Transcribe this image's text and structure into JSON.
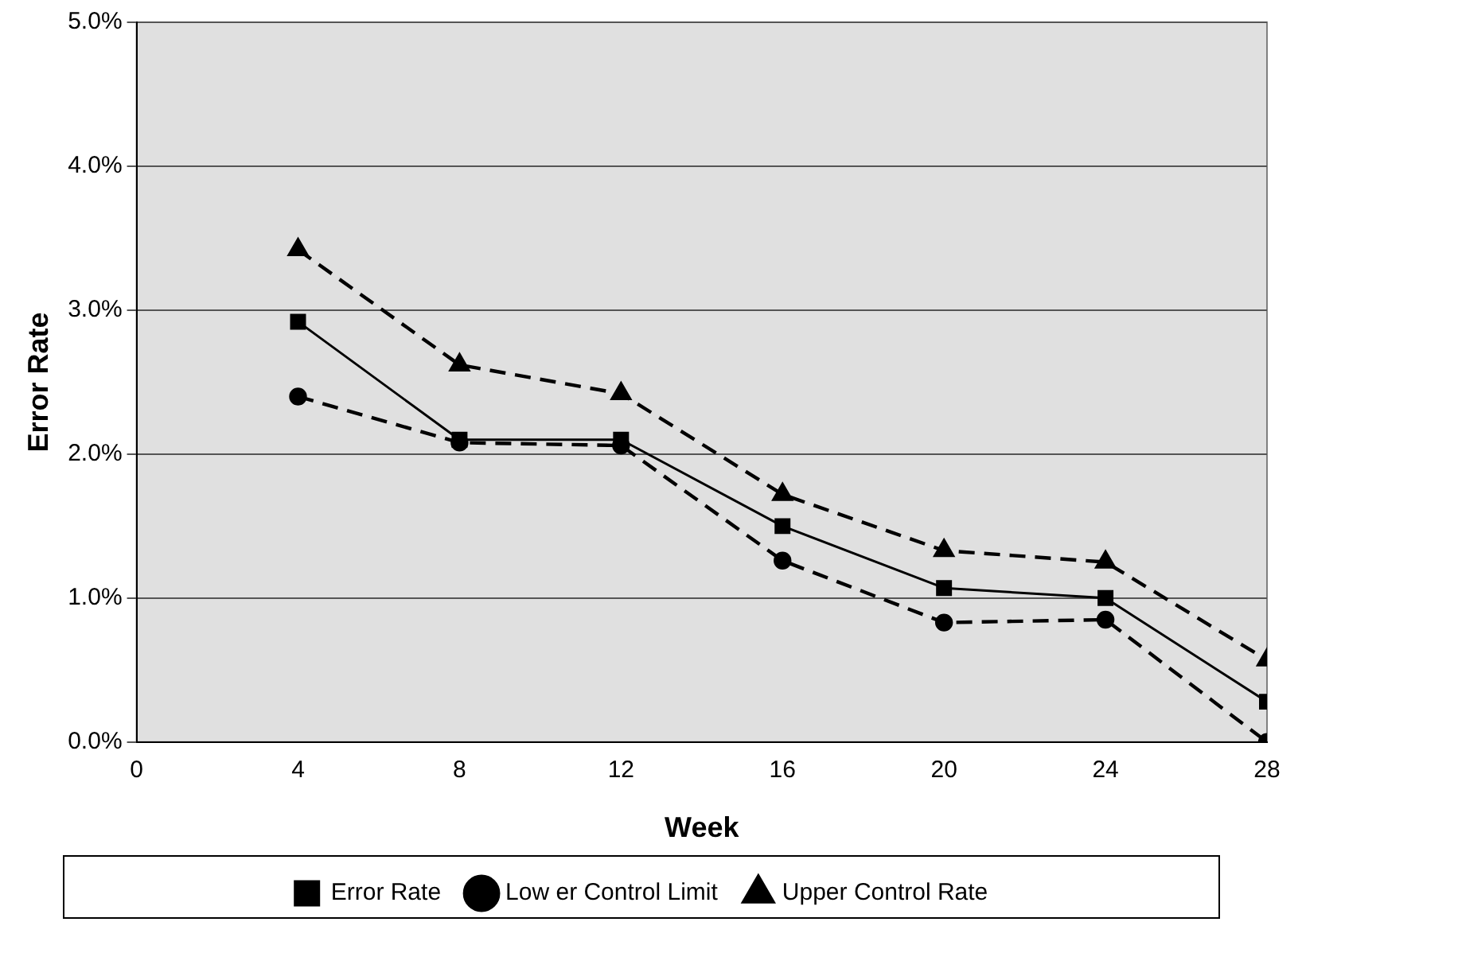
{
  "chart_data": {
    "type": "line",
    "xlabel": "Week",
    "ylabel": "Error Rate",
    "x": [
      4,
      8,
      12,
      16,
      20,
      24,
      28
    ],
    "xlim": [
      0,
      28
    ],
    "xticks": [
      0,
      4,
      8,
      12,
      16,
      20,
      24,
      28
    ],
    "ylim": [
      0,
      5
    ],
    "yticks": [
      {
        "value": 0,
        "label": "0.0%"
      },
      {
        "value": 1,
        "label": "1.0%"
      },
      {
        "value": 2,
        "label": "2.0%"
      },
      {
        "value": 3,
        "label": "3.0%"
      },
      {
        "value": 4,
        "label": "4.0%"
      },
      {
        "value": 5,
        "label": "5.0%"
      }
    ],
    "grid": "y",
    "legend": "bottom",
    "series": [
      {
        "name": "Low er Control Limit",
        "color": "#000000",
        "marker": "circle",
        "line_style": "dashed",
        "values": [
          2.4,
          2.08,
          2.06,
          1.26,
          0.83,
          0.85,
          0.0
        ]
      },
      {
        "name": "Error Rate",
        "color": "#000000",
        "marker": "square",
        "line_style": "solid",
        "values": [
          2.92,
          2.1,
          2.1,
          1.5,
          1.07,
          1.0,
          0.28
        ]
      },
      {
        "name": "Upper Control Rate",
        "color": "#000000",
        "marker": "triangle",
        "line_style": "dashed",
        "values": [
          3.42,
          2.62,
          2.42,
          1.72,
          1.33,
          1.25,
          0.57
        ]
      }
    ]
  }
}
